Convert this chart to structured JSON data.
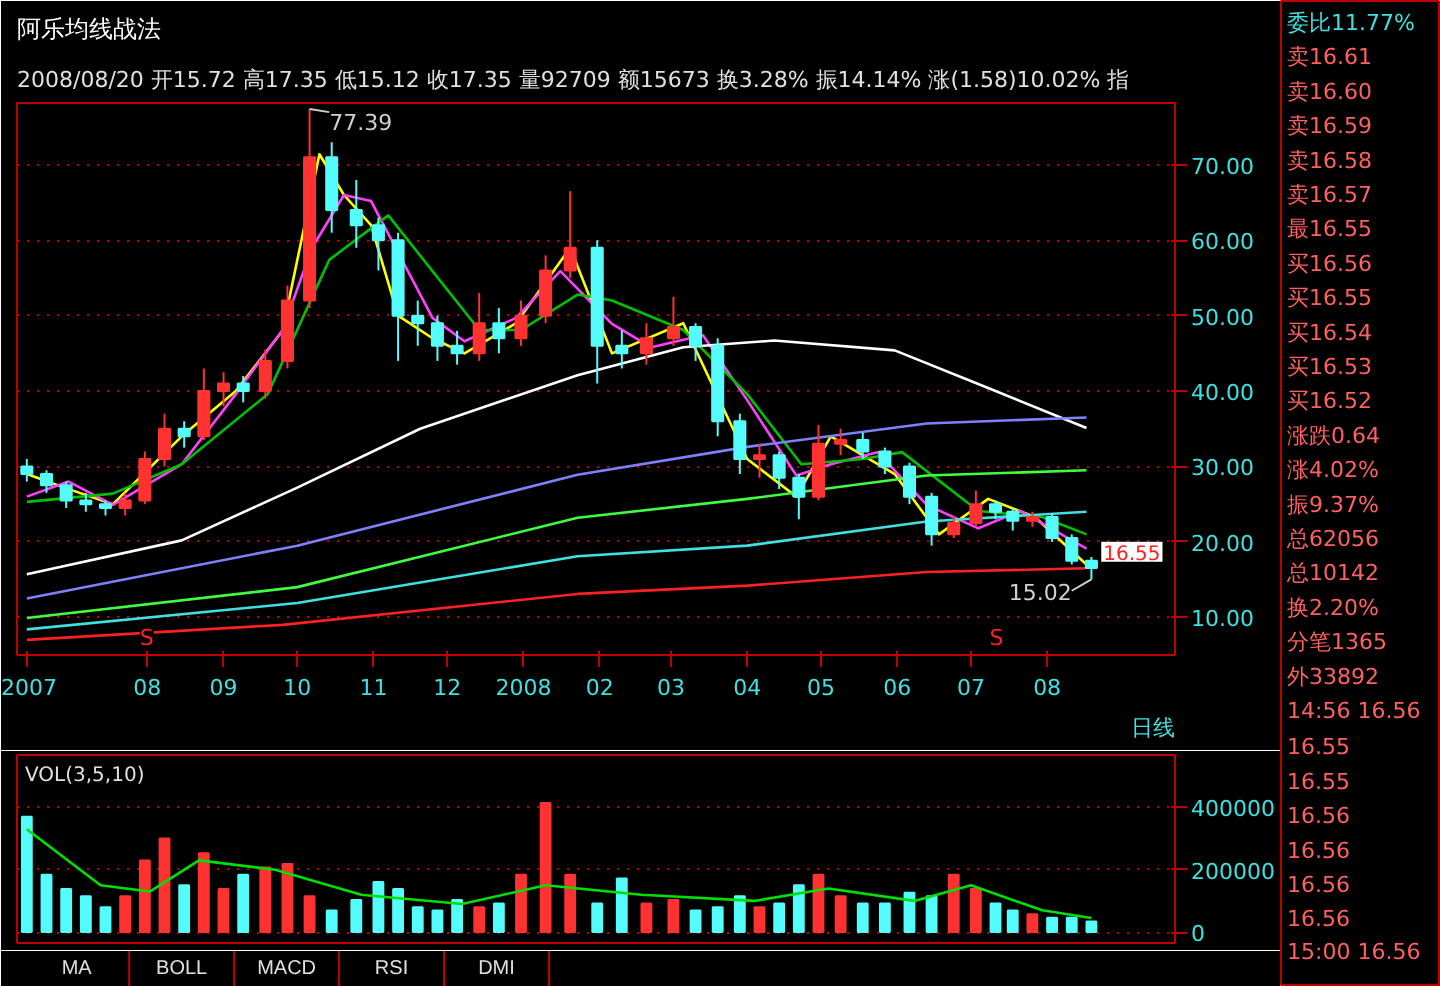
{
  "chart_data": [
    {
      "type": "candlestick",
      "title": "阿乐均线战法",
      "subtitle": "2008/08/20 开15.72 高17.35 低15.12 收17.35 量92709 额15673 换3.28% 振14.14% 涨(1.58)10.02% 指",
      "x": [
        "2007-06-13",
        "2007-06-21",
        "2007-06-29",
        "2007-07-07",
        "2007-07-15",
        "2007-07-23",
        "2007-07-31",
        "2007-08-08",
        "2007-08-16",
        "2007-08-24",
        "2007-09-01",
        "2007-09-09",
        "2007-09-18",
        "2007-09-27",
        "2007-10-06",
        "2007-10-15",
        "2007-10-25",
        "2007-11-03",
        "2007-11-11",
        "2007-11-19",
        "2007-11-27",
        "2007-12-05",
        "2007-12-14",
        "2007-12-22",
        "2007-12-31",
        "2008-01-10",
        "2008-01-20",
        "2008-01-31",
        "2008-02-10",
        "2008-02-20",
        "2008-03-02",
        "2008-03-11",
        "2008-03-20",
        "2008-03-29",
        "2008-04-06",
        "2008-04-14",
        "2008-04-22",
        "2008-04-30",
        "2008-05-09",
        "2008-05-18",
        "2008-05-27",
        "2008-06-06",
        "2008-06-15",
        "2008-06-24",
        "2008-07-03",
        "2008-07-11",
        "2008-07-18",
        "2008-07-26",
        "2008-08-03",
        "2008-08-11",
        "2008-08-19"
      ],
      "ohlc": [
        [
          30,
          31,
          28,
          29
        ],
        [
          29,
          29.5,
          26.5,
          27.5
        ],
        [
          27.5,
          28,
          24.5,
          25.5
        ],
        [
          25.5,
          26.5,
          24,
          25
        ],
        [
          25,
          25.5,
          23.5,
          24.5
        ],
        [
          24.5,
          26.5,
          23.5,
          25.5
        ],
        [
          25.5,
          32,
          25,
          31
        ],
        [
          31,
          37,
          30,
          35
        ],
        [
          35,
          36,
          32.5,
          34
        ],
        [
          34,
          43,
          33.5,
          40
        ],
        [
          40,
          42.5,
          38,
          41
        ],
        [
          41,
          42,
          38.5,
          40
        ],
        [
          40,
          45.5,
          39,
          44
        ],
        [
          44,
          54,
          43,
          52
        ],
        [
          52,
          77.39,
          51,
          71
        ],
        [
          71,
          73,
          61,
          64
        ],
        [
          64,
          68,
          59,
          62
        ],
        [
          62,
          63,
          56,
          60
        ],
        [
          60,
          61,
          44,
          50
        ],
        [
          50,
          52,
          46,
          49
        ],
        [
          49,
          50,
          44,
          46
        ],
        [
          46,
          48,
          43.5,
          45
        ],
        [
          45,
          53,
          44,
          49
        ],
        [
          49,
          51,
          45,
          47
        ],
        [
          47,
          52,
          46,
          50
        ],
        [
          50,
          58,
          49,
          56
        ],
        [
          56,
          66.5,
          55,
          59
        ],
        [
          59,
          60,
          41,
          46
        ],
        [
          46,
          48,
          43,
          45
        ],
        [
          45,
          49,
          43.5,
          47
        ],
        [
          47,
          52.5,
          46,
          48.5
        ],
        [
          48.5,
          49,
          44,
          46
        ],
        [
          46,
          47,
          34,
          36
        ],
        [
          36,
          37,
          29,
          31
        ],
        [
          31,
          33,
          28.5,
          31.5
        ],
        [
          31.5,
          32,
          27,
          28.5
        ],
        [
          28.5,
          29,
          23,
          26
        ],
        [
          26,
          35.5,
          25.5,
          33
        ],
        [
          33,
          35,
          31.5,
          33.5
        ],
        [
          33.5,
          34.5,
          31,
          32
        ],
        [
          32,
          32.5,
          29,
          30
        ],
        [
          30,
          30.5,
          25,
          26
        ],
        [
          26,
          26.5,
          19.5,
          21
        ],
        [
          21,
          23.5,
          20.5,
          22.5
        ],
        [
          22.5,
          26.8,
          22,
          25
        ],
        [
          25,
          25.5,
          23,
          24
        ],
        [
          24,
          24.5,
          21.5,
          22.8
        ],
        [
          22.8,
          24,
          22,
          23.3
        ],
        [
          23.3,
          23.8,
          20,
          20.5
        ],
        [
          20.5,
          21,
          17,
          17.5
        ],
        [
          17.5,
          18,
          15.02,
          16.55
        ]
      ],
      "colors": [
        "#54fcfc",
        "#54fcfc",
        "#54fcfc",
        "#54fcfc",
        "#54fcfc",
        "#ff3232",
        "#ff3232",
        "#ff3232",
        "#54fcfc",
        "#ff3232",
        "#ff3232",
        "#54fcfc",
        "#ff3232",
        "#ff3232",
        "#ff3232",
        "#54fcfc",
        "#54fcfc",
        "#54fcfc",
        "#54fcfc",
        "#54fcfc",
        "#54fcfc",
        "#54fcfc",
        "#ff3232",
        "#54fcfc",
        "#ff3232",
        "#ff3232",
        "#ff3232",
        "#54fcfc",
        "#54fcfc",
        "#ff3232",
        "#ff3232",
        "#54fcfc",
        "#54fcfc",
        "#54fcfc",
        "#ff3232",
        "#54fcfc",
        "#54fcfc",
        "#ff3232",
        "#ff3232",
        "#54fcfc",
        "#54fcfc",
        "#54fcfc",
        "#54fcfc",
        "#ff3232",
        "#ff3232",
        "#54fcfc",
        "#54fcfc",
        "#ff3232",
        "#54fcfc",
        "#54fcfc",
        "#54fcfc"
      ],
      "series": [
        {
          "type": "line",
          "color": "#ffff00",
          "x": [
            "2007-06-13",
            "2007-06-30",
            "2007-07-18",
            "2007-08-15",
            "2007-09-06",
            "2007-09-25",
            "2007-10-10",
            "2007-10-20",
            "2007-10-31",
            "2007-11-11",
            "2007-11-25",
            "2007-12-08",
            "2007-12-29",
            "2008-01-20",
            "2008-02-06",
            "2008-03-06",
            "2008-04-01",
            "2008-04-21",
            "2008-05-05",
            "2008-05-31",
            "2008-06-18",
            "2008-07-08",
            "2008-07-27",
            "2008-08-17"
          ],
          "values": [
            29,
            27,
            25,
            34,
            40,
            48,
            71.4,
            66,
            62,
            50,
            47,
            45,
            49,
            59,
            45,
            49,
            31,
            26,
            34,
            29,
            21,
            25.7,
            23.3,
            17
          ]
        },
        {
          "type": "line",
          "color": "#ff40ff",
          "x": [
            "2007-06-13",
            "2007-06-30",
            "2007-07-18",
            "2007-08-15",
            "2007-09-06",
            "2007-09-25",
            "2007-10-07",
            "2007-10-20",
            "2007-10-31",
            "2007-11-25",
            "2007-12-08",
            "2007-12-29",
            "2008-01-16",
            "2008-02-06",
            "2008-02-22",
            "2008-03-14",
            "2008-04-01",
            "2008-04-21",
            "2008-05-05",
            "2008-05-24",
            "2008-06-13",
            "2008-07-04",
            "2008-07-21",
            "2008-08-17"
          ],
          "values": [
            26,
            28,
            24.9,
            30.3,
            39.6,
            48.1,
            59,
            66,
            65.2,
            49.7,
            46.6,
            49.7,
            55.9,
            48.9,
            45.8,
            47.4,
            38.8,
            28.8,
            30.3,
            31.9,
            24.9,
            21.8,
            24.1,
            19.1
          ]
        },
        {
          "type": "line",
          "color": "#00c000",
          "x": [
            "2007-06-13",
            "2007-07-18",
            "2007-08-15",
            "2007-09-19",
            "2007-10-14",
            "2007-11-07",
            "2007-11-25",
            "2007-12-14",
            "2007-12-31",
            "2008-01-23",
            "2008-02-06",
            "2008-03-06",
            "2008-04-01",
            "2008-04-23",
            "2008-05-18",
            "2008-06-03",
            "2008-07-04",
            "2008-07-30",
            "2008-08-17"
          ],
          "values": [
            25.3,
            26.4,
            30.3,
            39.6,
            57.4,
            63.3,
            55.9,
            48.1,
            48.1,
            52.8,
            52,
            48.1,
            39.6,
            30.3,
            31,
            31.9,
            24.1,
            23.3,
            21
          ]
        },
        {
          "type": "line",
          "color": "#ffffff",
          "x": [
            "2007-06-13",
            "2007-08-15",
            "2007-10-01",
            "2007-11-20",
            "2008-01-23",
            "2008-03-06",
            "2008-04-12",
            "2008-05-31",
            "2008-07-08",
            "2008-08-17"
          ],
          "values": [
            15.7,
            20.2,
            27.2,
            35,
            42.1,
            45.8,
            46.7,
            45.4,
            40.4,
            35.1
          ]
        },
        {
          "type": "line",
          "color": "#8080ff",
          "x": [
            "2007-06-13",
            "2007-10-01",
            "2008-01-23",
            "2008-04-01",
            "2008-06-13",
            "2008-08-17"
          ],
          "values": [
            12.5,
            19.5,
            28.9,
            32.6,
            35.7,
            36.5
          ]
        },
        {
          "type": "line",
          "color": "#40ff40",
          "x": [
            "2007-06-13",
            "2007-10-01",
            "2008-01-23",
            "2008-04-01",
            "2008-06-13",
            "2008-08-17"
          ],
          "values": [
            9.9,
            14,
            23.2,
            25.7,
            28.8,
            29.5
          ]
        },
        {
          "type": "line",
          "color": "#40e0e0",
          "x": [
            "2007-06-13",
            "2007-10-01",
            "2008-01-23",
            "2008-04-01",
            "2008-06-13",
            "2008-08-17"
          ],
          "values": [
            8.4,
            11.9,
            18.1,
            19.5,
            22.7,
            24
          ]
        },
        {
          "type": "line",
          "color": "#ff2020",
          "x": [
            "2007-06-13",
            "2007-09-25",
            "2008-01-23",
            "2008-04-01",
            "2008-06-13",
            "2008-08-17"
          ],
          "values": [
            7,
            9,
            13.1,
            14.2,
            16,
            16.5
          ]
        }
      ],
      "xlim": [
        "2007-06-09",
        "2008-09-22"
      ],
      "xticks": [
        {
          "value": "2007-06-13",
          "label": "2007"
        },
        {
          "value": "2007-08",
          "label": "08"
        },
        {
          "value": "2007-09",
          "label": "09"
        },
        {
          "value": "2007-10",
          "label": "10"
        },
        {
          "value": "2007-11",
          "label": "11"
        },
        {
          "value": "2007-12",
          "label": "12"
        },
        {
          "value": "2008-01",
          "label": "2008"
        },
        {
          "value": "2008-02",
          "label": "02"
        },
        {
          "value": "2008-03",
          "label": "03"
        },
        {
          "value": "2008-04",
          "label": "04"
        },
        {
          "value": "2008-05",
          "label": "05"
        },
        {
          "value": "2008-06",
          "label": "06"
        },
        {
          "value": "2008-07",
          "label": "07"
        },
        {
          "value": "2008-08",
          "label": "08"
        }
      ],
      "ylim": [
        5,
        78.2
      ],
      "yticks": [
        {
          "value": 10,
          "label": "10.00"
        },
        {
          "value": 20,
          "label": "20.00"
        },
        {
          "value": 30,
          "label": "30.00"
        },
        {
          "value": 40,
          "label": "40.00"
        },
        {
          "value": 50,
          "label": "50.00"
        },
        {
          "value": 60,
          "label": "60.00"
        },
        {
          "value": 70,
          "label": "70.00"
        }
      ],
      "grid": "y",
      "annotations": [
        {
          "text": "77.39",
          "x": "2007-10-06",
          "y": 77.39
        },
        {
          "text": "15.02",
          "x": "2008-08-19",
          "y": 15.02
        },
        {
          "text": "16.55",
          "x": "2008-08-19",
          "y": 16.55
        },
        "S",
        "S",
        "日线"
      ]
    },
    {
      "type": "bar",
      "title": "VOL(3,5,10)",
      "x": [
        "2007-06-13",
        "2007-06-21",
        "2007-06-29",
        "2007-07-07",
        "2007-07-15",
        "2007-07-23",
        "2007-07-31",
        "2007-08-08",
        "2007-08-16",
        "2007-08-24",
        "2007-09-01",
        "2007-09-09",
        "2007-09-18",
        "2007-09-27",
        "2007-10-06",
        "2007-10-15",
        "2007-10-25",
        "2007-11-03",
        "2007-11-11",
        "2007-11-19",
        "2007-11-27",
        "2007-12-05",
        "2007-12-14",
        "2007-12-22",
        "2007-12-31",
        "2008-01-10",
        "2008-01-20",
        "2008-01-31",
        "2008-02-10",
        "2008-02-20",
        "2008-03-02",
        "2008-03-11",
        "2008-03-20",
        "2008-03-29",
        "2008-04-06",
        "2008-04-14",
        "2008-04-22",
        "2008-04-30",
        "2008-05-09",
        "2008-05-18",
        "2008-05-27",
        "2008-06-06",
        "2008-06-15",
        "2008-06-24",
        "2008-07-03",
        "2008-07-11",
        "2008-07-18",
        "2008-07-26",
        "2008-08-03",
        "2008-08-11",
        "2008-08-19"
      ],
      "values": [
        370000,
        184000,
        138000,
        115000,
        80000,
        115000,
        230000,
        300000,
        150000,
        253000,
        138000,
        184000,
        207000,
        218000,
        115000,
        69000,
        103000,
        161000,
        138000,
        80000,
        69000,
        103000,
        80000,
        92000,
        184000,
        414000,
        184000,
        92000,
        172000,
        92000,
        103000,
        69000,
        80000,
        115000,
        80000,
        92000,
        150000,
        184000,
        115000,
        92000,
        92000,
        126000,
        115000,
        184000,
        138000,
        92000,
        69000,
        57000,
        46000,
        46000,
        34000
      ],
      "colors": [
        "#54fcfc",
        "#54fcfc",
        "#54fcfc",
        "#54fcfc",
        "#54fcfc",
        "#ff3232",
        "#ff3232",
        "#ff3232",
        "#54fcfc",
        "#ff3232",
        "#ff3232",
        "#54fcfc",
        "#ff3232",
        "#ff3232",
        "#ff3232",
        "#54fcfc",
        "#54fcfc",
        "#54fcfc",
        "#54fcfc",
        "#54fcfc",
        "#54fcfc",
        "#54fcfc",
        "#ff3232",
        "#54fcfc",
        "#ff3232",
        "#ff3232",
        "#ff3232",
        "#54fcfc",
        "#54fcfc",
        "#ff3232",
        "#ff3232",
        "#54fcfc",
        "#54fcfc",
        "#54fcfc",
        "#ff3232",
        "#54fcfc",
        "#54fcfc",
        "#ff3232",
        "#ff3232",
        "#54fcfc",
        "#54fcfc",
        "#54fcfc",
        "#54fcfc",
        "#ff3232",
        "#ff3232",
        "#54fcfc",
        "#54fcfc",
        "#ff3232",
        "#54fcfc",
        "#54fcfc",
        "#54fcfc"
      ],
      "series": [
        {
          "type": "line",
          "color": "#00e000",
          "x": [
            "2007-06-13",
            "2007-07-13",
            "2007-08-02",
            "2007-08-22",
            "2007-09-22",
            "2007-10-27",
            "2007-12-07",
            "2008-01-10",
            "2008-02-18",
            "2008-04-04",
            "2008-05-04",
            "2008-06-08",
            "2008-07-01",
            "2008-07-30",
            "2008-08-19"
          ],
          "values": [
            330000,
            150000,
            130000,
            230000,
            200000,
            120000,
            90000,
            150000,
            120000,
            100000,
            140000,
            100000,
            150000,
            70000,
            45000
          ]
        }
      ],
      "xlim": [
        "2007-06-09",
        "2008-09-22"
      ],
      "ylim": [
        -35000,
        568000
      ],
      "yticks": [
        {
          "value": 0,
          "label": "0"
        },
        {
          "value": 200000,
          "label": "200000"
        },
        {
          "value": 400000,
          "label": "400000"
        }
      ],
      "grid": "y",
      "tick_labels": "y",
      "annotations": [
        "MA",
        "BOLL",
        "MACD",
        "RSI",
        "DMI"
      ]
    },
    {
      "type": "other",
      "annotations": [
        "委比11.77%",
        "卖16.61",
        "卖16.60",
        "卖16.59",
        "卖16.58",
        "卖16.57",
        "最16.55",
        "买16.56",
        "买16.55",
        "买16.54",
        "买16.53",
        "买16.52",
        "涨跌0.64",
        "涨4.02%",
        "振9.37%",
        "总62056",
        "总10142",
        "换2.20%",
        "分笔1365",
        "外33892",
        "14:56 16.56",
        "16.55",
        "16.55",
        "16.56",
        "16.56",
        "16.56",
        "16.56",
        "15:00 16.56"
      ]
    }
  ]
}
